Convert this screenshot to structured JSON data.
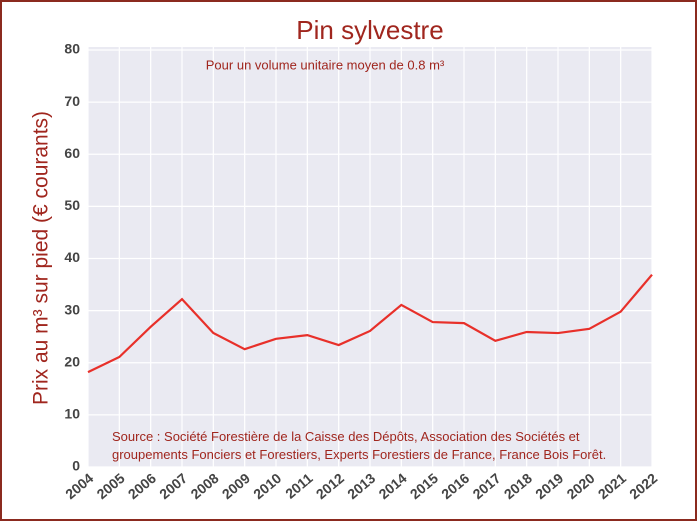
{
  "chart_data": {
    "type": "line",
    "title": "Pin sylvestre",
    "subtitle": "Pour un volume unitaire moyen de 0.8 m³",
    "y_label": "Prix au m³ sur pied (€ courants)",
    "annotation": "Source : Société Forestière de la Caisse des Dépôts, Association des Sociétés et groupements Fonciers et Forestiers, Experts Forestiers de France, France Bois Forêt.",
    "x": [
      2004,
      2005,
      2006,
      2007,
      2008,
      2009,
      2010,
      2011,
      2012,
      2013,
      2014,
      2015,
      2016,
      2017,
      2018,
      2019,
      2020,
      2021,
      2022
    ],
    "series": [
      {
        "color": "#e8302a",
        "values": [
          18.2,
          21.1,
          26.9,
          32.2,
          25.7,
          22.6,
          24.6,
          25.3,
          23.4,
          26.1,
          31.1,
          27.8,
          27.6,
          24.2,
          25.9,
          25.7,
          26.5,
          29.8,
          36.9
        ]
      }
    ],
    "xlim": [
      2004,
      2022
    ],
    "xticks": [
      2004,
      2005,
      2006,
      2007,
      2008,
      2009,
      2010,
      2011,
      2012,
      2013,
      2014,
      2015,
      2016,
      2017,
      2018,
      2019,
      2020,
      2021,
      2022
    ],
    "ylim": [
      0,
      80
    ],
    "yticks": [
      0,
      10,
      20,
      30,
      40,
      50,
      60,
      70,
      80
    ],
    "grid": true
  }
}
